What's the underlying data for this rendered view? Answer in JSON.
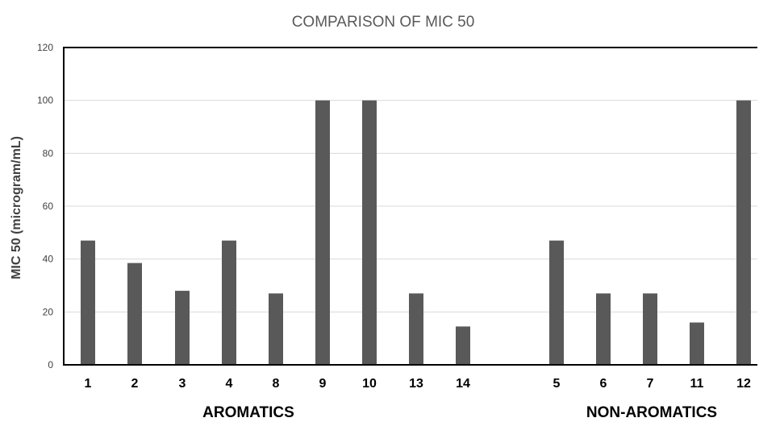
{
  "chart_data": {
    "type": "bar",
    "title": "COMPARISON OF MIC 50",
    "ylabel": "MIC 50   (microgram/mL)",
    "ylim": [
      0,
      120
    ],
    "yticks": [
      0,
      20,
      40,
      60,
      80,
      100,
      120
    ],
    "grid": true,
    "groups": [
      {
        "label": "AROMATICS",
        "categories": [
          "1",
          "2",
          "3",
          "4",
          "8",
          "9",
          "10",
          "13",
          "14"
        ],
        "values": [
          47,
          38.5,
          28,
          47,
          27,
          100,
          100,
          27,
          14.5
        ]
      },
      {
        "label": "NON-AROMATICS",
        "categories": [
          "5",
          "6",
          "7",
          "11",
          "12"
        ],
        "values": [
          47,
          27,
          27,
          16,
          100
        ]
      }
    ],
    "colors": {
      "bar": "#595959",
      "axis": "#000000",
      "grid": "#d9d9d9"
    }
  }
}
